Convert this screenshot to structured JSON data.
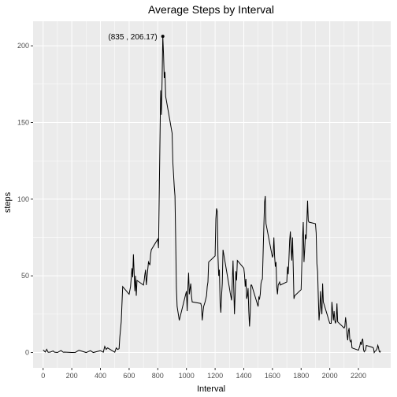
{
  "chart_data": {
    "type": "line",
    "title": "Average Steps by Interval",
    "xlabel": "Interval",
    "ylabel": "steps",
    "xlim": [
      -70,
      2425
    ],
    "ylim": [
      -10,
      216
    ],
    "x_ticks": [
      0,
      200,
      400,
      600,
      800,
      1000,
      1200,
      1400,
      1600,
      1800,
      2000,
      2200
    ],
    "x_minor_step": 100,
    "y_ticks": [
      0,
      50,
      100,
      150,
      200
    ],
    "grid": true,
    "legend": "none",
    "colors": {
      "panel": "#ebebeb",
      "grid": "#ffffff",
      "line": "#000000"
    },
    "annotation": {
      "text": "(835 , 206.17)",
      "x": 835,
      "y": 206.17
    },
    "series": [
      {
        "values": [
          [
            0,
            1.72
          ],
          [
            15,
            0.34
          ],
          [
            25,
            2.1
          ],
          [
            35,
            0.15
          ],
          [
            50,
            0.3
          ],
          [
            70,
            1.0
          ],
          [
            80,
            0.2
          ],
          [
            100,
            0.0
          ],
          [
            125,
            1.3
          ],
          [
            140,
            0.2
          ],
          [
            150,
            0.3
          ],
          [
            200,
            0.0
          ],
          [
            225,
            0.1
          ],
          [
            250,
            1.5
          ],
          [
            300,
            0.0
          ],
          [
            330,
            1.2
          ],
          [
            350,
            0.0
          ],
          [
            400,
            1.2
          ],
          [
            420,
            0.2
          ],
          [
            430,
            4.0
          ],
          [
            440,
            2.0
          ],
          [
            450,
            3.0
          ],
          [
            500,
            0.2
          ],
          [
            510,
            3.0
          ],
          [
            520,
            2.0
          ],
          [
            530,
            2.5
          ],
          [
            535,
            10.0
          ],
          [
            545,
            20.0
          ],
          [
            555,
            43.0
          ],
          [
            600,
            38.0
          ],
          [
            610,
            43.0
          ],
          [
            620,
            55.0
          ],
          [
            625,
            49.0
          ],
          [
            630,
            64.0
          ],
          [
            640,
            40.0
          ],
          [
            645,
            50.0
          ],
          [
            650,
            37.0
          ],
          [
            655,
            47.0
          ],
          [
            700,
            44.0
          ],
          [
            705,
            47.0
          ],
          [
            710,
            51.0
          ],
          [
            715,
            54.0
          ],
          [
            720,
            44.0
          ],
          [
            735,
            59.0
          ],
          [
            745,
            57.0
          ],
          [
            750,
            64.0
          ],
          [
            755,
            67.0
          ],
          [
            800,
            74.0
          ],
          [
            805,
            68.0
          ],
          [
            820,
            171.0
          ],
          [
            825,
            155.0
          ],
          [
            830,
            177.0
          ],
          [
            835,
            206.17
          ],
          [
            840,
            195.0
          ],
          [
            845,
            179.0
          ],
          [
            850,
            183.0
          ],
          [
            855,
            167.0
          ],
          [
            900,
            143.0
          ],
          [
            905,
            124.0
          ],
          [
            915,
            108.0
          ],
          [
            920,
            102.0
          ],
          [
            925,
            73.0
          ],
          [
            930,
            42.0
          ],
          [
            935,
            30.0
          ],
          [
            950,
            21.0
          ],
          [
            1000,
            40.0
          ],
          [
            1005,
            27.0
          ],
          [
            1010,
            42.0
          ],
          [
            1015,
            52.0
          ],
          [
            1020,
            38.0
          ],
          [
            1030,
            45.0
          ],
          [
            1035,
            37.0
          ],
          [
            1040,
            33.0
          ],
          [
            1100,
            32.0
          ],
          [
            1105,
            30.0
          ],
          [
            1110,
            21.0
          ],
          [
            1115,
            26.0
          ],
          [
            1120,
            30.0
          ],
          [
            1130,
            33.0
          ],
          [
            1140,
            37.0
          ],
          [
            1145,
            43.0
          ],
          [
            1150,
            46.0
          ],
          [
            1155,
            59.0
          ],
          [
            1200,
            63.0
          ],
          [
            1205,
            87.0
          ],
          [
            1210,
            94.0
          ],
          [
            1215,
            92.0
          ],
          [
            1220,
            63.0
          ],
          [
            1225,
            50.0
          ],
          [
            1230,
            54.0
          ],
          [
            1235,
            32.0
          ],
          [
            1240,
            26.0
          ],
          [
            1245,
            37.0
          ],
          [
            1250,
            45.0
          ],
          [
            1255,
            67.0
          ],
          [
            1300,
            42.0
          ],
          [
            1305,
            39.0
          ],
          [
            1315,
            34.0
          ],
          [
            1320,
            46.0
          ],
          [
            1325,
            60.0
          ],
          [
            1330,
            42.0
          ],
          [
            1335,
            25.0
          ],
          [
            1345,
            53.0
          ],
          [
            1350,
            47.0
          ],
          [
            1355,
            60.0
          ],
          [
            1400,
            55.0
          ],
          [
            1405,
            51.0
          ],
          [
            1410,
            43.0
          ],
          [
            1415,
            48.0
          ],
          [
            1420,
            35.0
          ],
          [
            1425,
            37.0
          ],
          [
            1430,
            42.0
          ],
          [
            1435,
            27.0
          ],
          [
            1440,
            17.0
          ],
          [
            1445,
            26.0
          ],
          [
            1450,
            44.0
          ],
          [
            1455,
            44.0
          ],
          [
            1500,
            30.0
          ],
          [
            1505,
            36.0
          ],
          [
            1510,
            35.0
          ],
          [
            1515,
            38.0
          ],
          [
            1520,
            45.0
          ],
          [
            1525,
            47.0
          ],
          [
            1530,
            48.0
          ],
          [
            1535,
            65.0
          ],
          [
            1540,
            82.0
          ],
          [
            1545,
            98.0
          ],
          [
            1550,
            102.0
          ],
          [
            1555,
            84.0
          ],
          [
            1600,
            62.0
          ],
          [
            1605,
            64.0
          ],
          [
            1610,
            75.0
          ],
          [
            1615,
            63.0
          ],
          [
            1620,
            56.0
          ],
          [
            1625,
            59.0
          ],
          [
            1630,
            43.0
          ],
          [
            1635,
            38.0
          ],
          [
            1640,
            44.0
          ],
          [
            1645,
            45.0
          ],
          [
            1650,
            46.0
          ],
          [
            1655,
            44.0
          ],
          [
            1700,
            46.0
          ],
          [
            1705,
            56.0
          ],
          [
            1710,
            51.0
          ],
          [
            1715,
            61.0
          ],
          [
            1720,
            73.0
          ],
          [
            1725,
            79.0
          ],
          [
            1730,
            68.0
          ],
          [
            1735,
            60.0
          ],
          [
            1740,
            75.0
          ],
          [
            1745,
            56.0
          ],
          [
            1750,
            35.0
          ],
          [
            1755,
            37.0
          ],
          [
            1800,
            41.0
          ],
          [
            1805,
            58.0
          ],
          [
            1810,
            74.0
          ],
          [
            1815,
            85.0
          ],
          [
            1820,
            59.0
          ],
          [
            1825,
            67.0
          ],
          [
            1830,
            77.0
          ],
          [
            1835,
            74.0
          ],
          [
            1840,
            85.0
          ],
          [
            1845,
            99.0
          ],
          [
            1850,
            86.0
          ],
          [
            1855,
            85.0
          ],
          [
            1900,
            84.0
          ],
          [
            1905,
            78.0
          ],
          [
            1910,
            58.0
          ],
          [
            1915,
            53.0
          ],
          [
            1920,
            36.0
          ],
          [
            1925,
            21.0
          ],
          [
            1930,
            27.0
          ],
          [
            1935,
            40.0
          ],
          [
            1940,
            30.0
          ],
          [
            1945,
            25.0
          ],
          [
            1950,
            45.0
          ],
          [
            1955,
            33.0
          ],
          [
            2000,
            19.0
          ],
          [
            2005,
            19.0
          ],
          [
            2010,
            19.0
          ],
          [
            2015,
            33.0
          ],
          [
            2020,
            27.0
          ],
          [
            2025,
            21.0
          ],
          [
            2030,
            27.0
          ],
          [
            2035,
            21.0
          ],
          [
            2040,
            19.0
          ],
          [
            2045,
            21.0
          ],
          [
            2050,
            32.0
          ],
          [
            2055,
            20.0
          ],
          [
            2100,
            16.0
          ],
          [
            2105,
            17.0
          ],
          [
            2110,
            23.0
          ],
          [
            2115,
            19.0
          ],
          [
            2120,
            12.0
          ],
          [
            2125,
            8.0
          ],
          [
            2130,
            14.0
          ],
          [
            2135,
            16.0
          ],
          [
            2140,
            8.0
          ],
          [
            2145,
            7.0
          ],
          [
            2150,
            8.0
          ],
          [
            2155,
            3.0
          ],
          [
            2200,
            1.5
          ],
          [
            2205,
            3.0
          ],
          [
            2210,
            4.5
          ],
          [
            2215,
            7.0
          ],
          [
            2220,
            5.0
          ],
          [
            2225,
            8.0
          ],
          [
            2230,
            9.0
          ],
          [
            2235,
            2.0
          ],
          [
            2240,
            0.5
          ],
          [
            2245,
            1.1
          ],
          [
            2250,
            1.6
          ],
          [
            2255,
            4.6
          ],
          [
            2300,
            3.3
          ],
          [
            2305,
            2.8
          ],
          [
            2310,
            0.0
          ],
          [
            2315,
            0.8
          ],
          [
            2320,
            1.0
          ],
          [
            2325,
            1.6
          ],
          [
            2330,
            2.6
          ],
          [
            2335,
            4.7
          ],
          [
            2340,
            3.3
          ],
          [
            2345,
            0.6
          ],
          [
            2350,
            0.2
          ],
          [
            2355,
            1.1
          ]
        ]
      }
    ]
  }
}
